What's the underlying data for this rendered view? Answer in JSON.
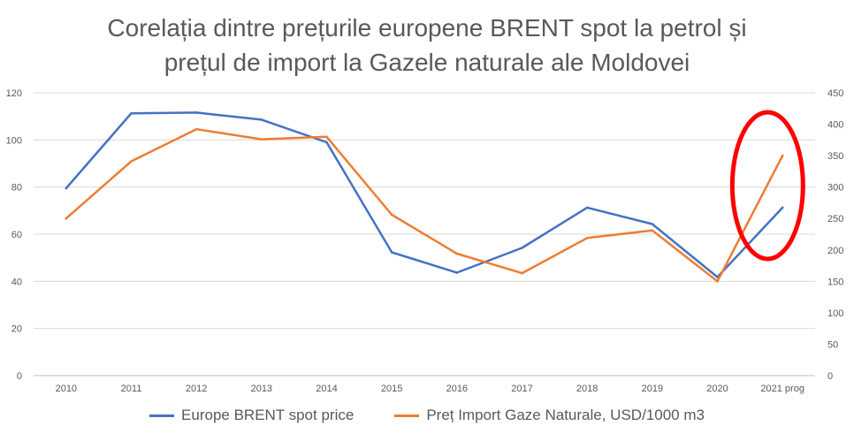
{
  "chart_data": {
    "type": "line",
    "title_line1": "Corelația dintre prețurile europene BRENT spot la petrol și",
    "title_line2": "prețul de import la Gazele naturale ale Moldovei",
    "categories": [
      "2010",
      "2011",
      "2012",
      "2013",
      "2014",
      "2015",
      "2016",
      "2017",
      "2018",
      "2019",
      "2020",
      "2021 prog"
    ],
    "series": [
      {
        "name": "Europe BRENT spot price",
        "axis": "left",
        "color": "#4472C4",
        "values": [
          79.5,
          111.3,
          111.6,
          108.6,
          99.0,
          52.3,
          43.7,
          54.2,
          71.3,
          64.3,
          41.8,
          71.3
        ]
      },
      {
        "name": "Preț Import Gaze Naturale, USD/1000 m3",
        "axis": "right",
        "color": "#ED7D31",
        "values": [
          250,
          341,
          392,
          376,
          380,
          256,
          194,
          163,
          219,
          231,
          150,
          350
        ]
      }
    ],
    "y_left": {
      "min": 0,
      "max": 120,
      "ticks": [
        0,
        20,
        40,
        60,
        80,
        100,
        120
      ]
    },
    "y_right": {
      "min": 0,
      "max": 450,
      "ticks": [
        0,
        50,
        100,
        150,
        200,
        250,
        300,
        350,
        400,
        450
      ]
    },
    "grid": true,
    "legend": "bottom",
    "annotation": {
      "shape": "ellipse",
      "color": "#FF0000",
      "highlights": [
        "2020",
        "2021 prog"
      ]
    }
  }
}
